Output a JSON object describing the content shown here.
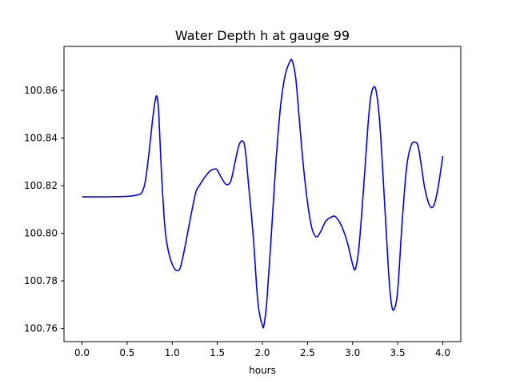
{
  "chart_data": {
    "type": "line",
    "title": "Water Depth h at gauge 99",
    "xlabel": "hours",
    "ylabel": "",
    "xlim": [
      -0.2,
      4.2
    ],
    "ylim": [
      100.7545,
      100.8785
    ],
    "x_ticks": [
      0.0,
      0.5,
      1.0,
      1.5,
      2.0,
      2.5,
      3.0,
      3.5,
      4.0
    ],
    "x_tick_labels": [
      "0.0",
      "0.5",
      "1.0",
      "1.5",
      "2.0",
      "2.5",
      "3.0",
      "3.5",
      "4.0"
    ],
    "y_ticks": [
      100.76,
      100.78,
      100.8,
      100.82,
      100.84,
      100.86
    ],
    "y_tick_labels": [
      "100.76",
      "100.78",
      "100.80",
      "100.82",
      "100.84",
      "100.86"
    ],
    "grid": false,
    "series": [
      {
        "color": "#0000ff",
        "x": [
          0.0,
          0.2,
          0.4,
          0.5,
          0.6,
          0.66,
          0.7,
          0.74,
          0.78,
          0.81,
          0.83,
          0.85,
          0.88,
          0.92,
          0.96,
          1.0,
          1.04,
          1.08,
          1.1,
          1.14,
          1.2,
          1.26,
          1.3,
          1.36,
          1.42,
          1.47,
          1.5,
          1.55,
          1.6,
          1.65,
          1.7,
          1.74,
          1.78,
          1.81,
          1.85,
          1.9,
          1.95,
          2.0,
          2.02,
          2.05,
          2.1,
          2.15,
          2.2,
          2.25,
          2.3,
          2.33,
          2.37,
          2.4,
          2.45,
          2.5,
          2.55,
          2.6,
          2.65,
          2.7,
          2.75,
          2.8,
          2.85,
          2.9,
          2.95,
          3.0,
          3.03,
          3.07,
          3.12,
          3.17,
          3.2,
          3.23,
          3.26,
          3.3,
          3.35,
          3.4,
          3.43,
          3.46,
          3.5,
          3.55,
          3.6,
          3.65,
          3.7,
          3.73,
          3.76,
          3.8,
          3.85,
          3.89,
          3.92,
          3.96,
          4.0
        ],
        "values": [
          100.8153,
          100.8153,
          100.8154,
          100.8155,
          100.816,
          100.817,
          100.8215,
          100.833,
          100.847,
          100.8555,
          100.8575,
          100.851,
          100.826,
          100.802,
          100.792,
          100.787,
          100.7845,
          100.7848,
          100.787,
          100.794,
          100.806,
          100.817,
          100.82,
          100.8235,
          100.8262,
          100.827,
          100.8265,
          100.823,
          100.8205,
          100.822,
          100.8305,
          100.837,
          100.8388,
          100.835,
          100.819,
          100.798,
          100.771,
          100.7612,
          100.762,
          100.772,
          100.8,
          100.83,
          100.853,
          100.866,
          100.8718,
          100.8725,
          100.865,
          100.852,
          100.83,
          100.813,
          100.802,
          100.7985,
          100.801,
          100.805,
          100.8065,
          100.8072,
          100.805,
          100.801,
          100.795,
          100.787,
          100.785,
          100.794,
          100.818,
          100.845,
          100.857,
          100.8612,
          100.86,
          100.847,
          100.816,
          100.783,
          100.7705,
          100.768,
          100.776,
          100.805,
          100.828,
          100.837,
          100.8382,
          100.836,
          100.829,
          100.819,
          100.812,
          100.811,
          100.814,
          100.822,
          100.8325
        ]
      }
    ]
  }
}
